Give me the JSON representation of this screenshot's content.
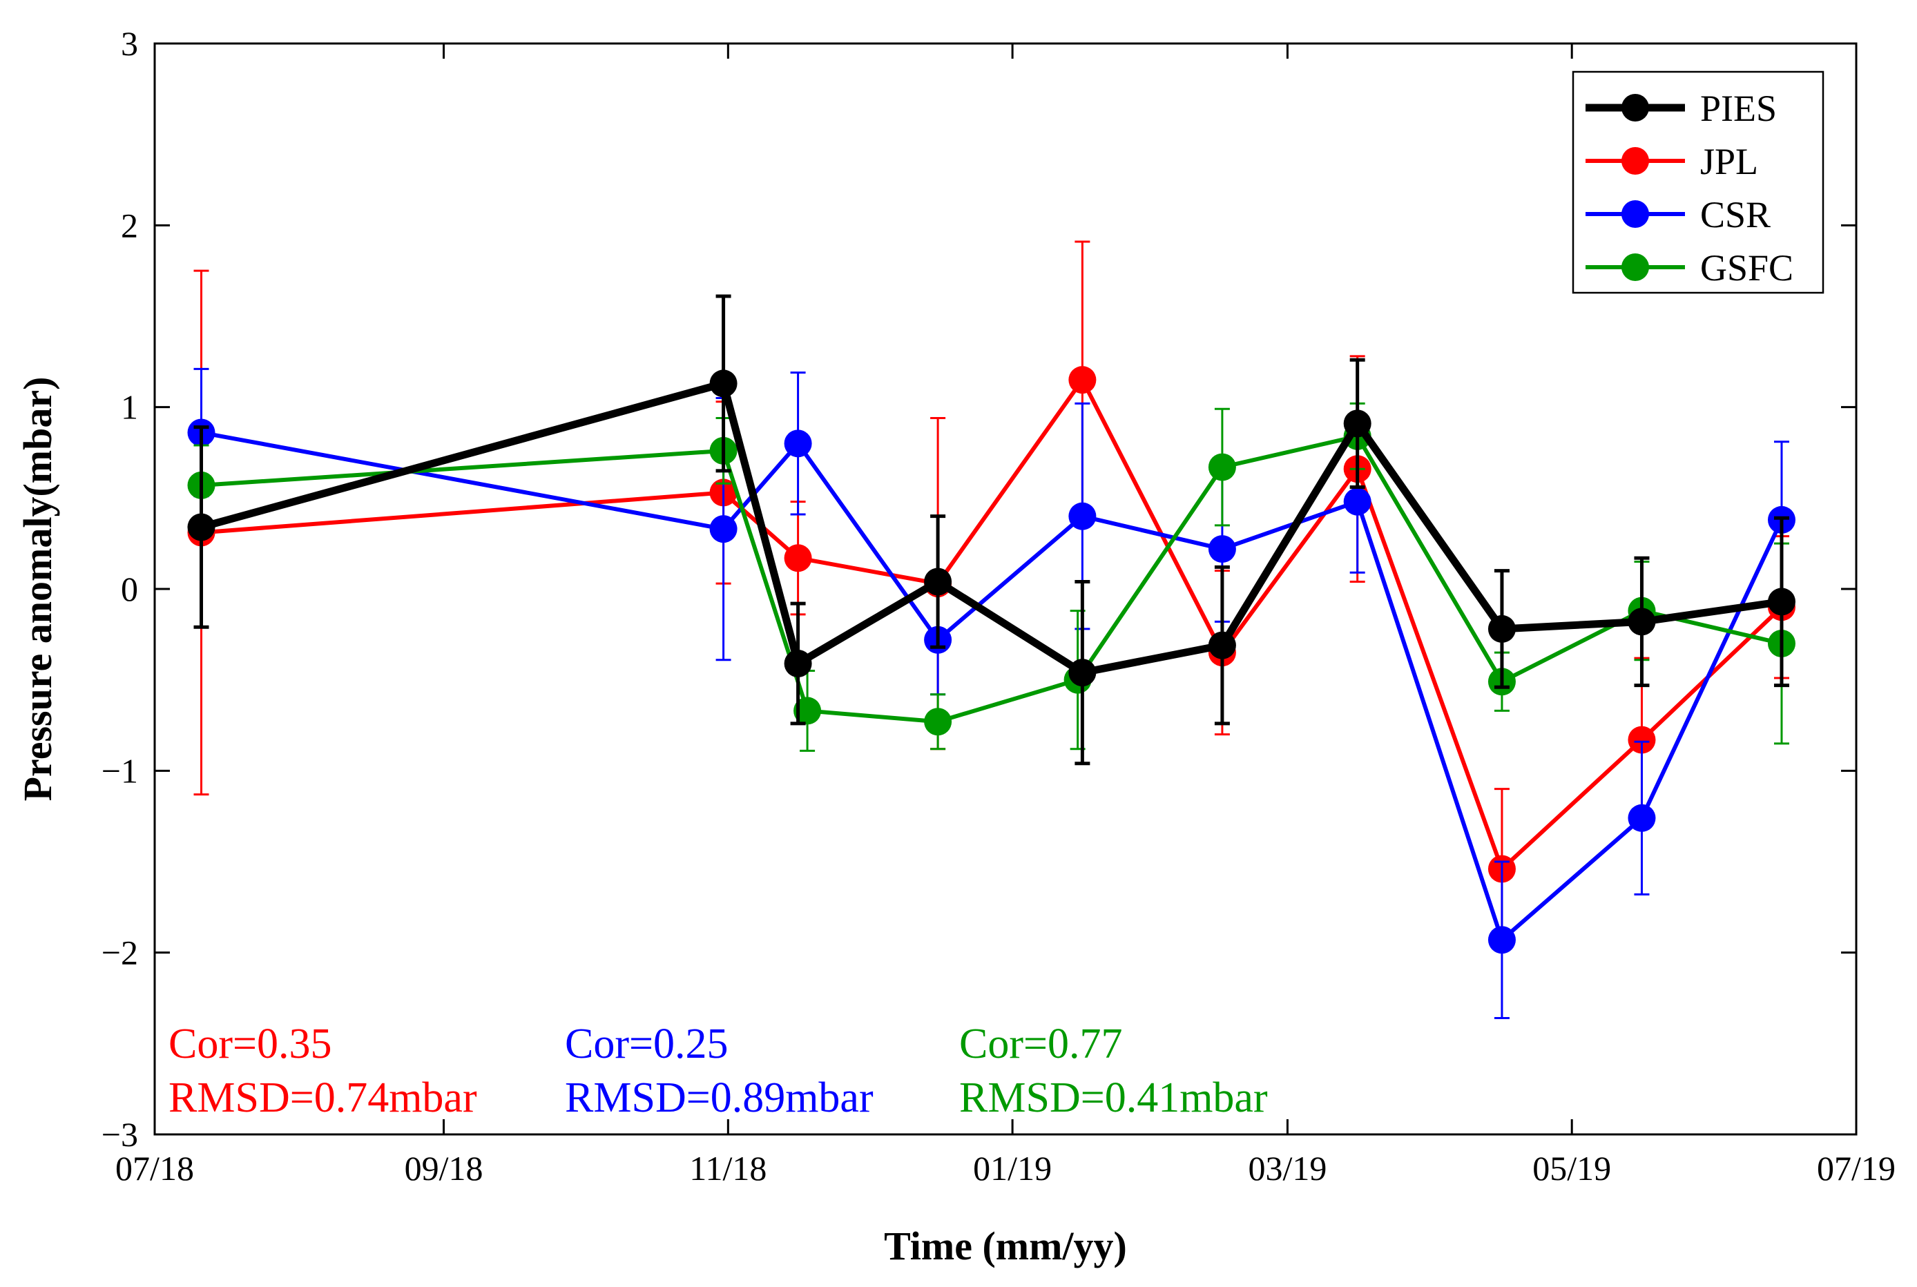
{
  "chart_data": {
    "type": "line",
    "xlabel": "Time (mm/yy)",
    "ylabel": "Pressure anomaly(mbar)",
    "xlim": [
      "2018-07-01",
      "2019-07-01"
    ],
    "ylim": [
      -3,
      3
    ],
    "x_ticks": [
      {
        "date": "2018-07-01",
        "label": "07/18"
      },
      {
        "date": "2018-09-01",
        "label": "09/18"
      },
      {
        "date": "2018-11-01",
        "label": "11/18"
      },
      {
        "date": "2019-01-01",
        "label": "01/19"
      },
      {
        "date": "2019-03-01",
        "label": "03/19"
      },
      {
        "date": "2019-05-01",
        "label": "05/19"
      },
      {
        "date": "2019-07-01",
        "label": "07/19"
      }
    ],
    "y_ticks": [
      {
        "value": 3,
        "label": "3"
      },
      {
        "value": 2,
        "label": "2"
      },
      {
        "value": 1,
        "label": "1"
      },
      {
        "value": 0,
        "label": "0"
      },
      {
        "value": -1,
        "label": "−1"
      },
      {
        "value": -2,
        "label": "−2"
      },
      {
        "value": -3,
        "label": "−3"
      }
    ],
    "legend_position": "top-right",
    "series": [
      {
        "name": "PIES",
        "color": "#000000",
        "line_width": 11,
        "err_width": 5,
        "x": [
          "2018-07-11",
          "2018-10-31",
          "2018-11-16",
          "2018-12-16",
          "2019-01-16",
          "2019-02-15",
          "2019-03-16",
          "2019-04-16",
          "2019-05-16",
          "2019-06-15"
        ],
        "y": [
          0.34,
          1.13,
          -0.41,
          0.04,
          -0.46,
          -0.31,
          0.91,
          -0.22,
          -0.18,
          -0.07
        ],
        "err": [
          0.55,
          0.48,
          0.33,
          0.36,
          0.5,
          0.43,
          0.35,
          0.32,
          0.35,
          0.46
        ]
      },
      {
        "name": "JPL",
        "color": "#ff0000",
        "line_width": 6,
        "err_width": 3,
        "x": [
          "2018-07-11",
          "2018-10-31",
          "2018-11-16",
          "2018-12-16",
          "2019-01-16",
          "2019-02-15",
          "2019-03-16",
          "2019-04-16",
          "2019-05-16",
          "2019-06-15"
        ],
        "y": [
          0.31,
          0.53,
          0.17,
          0.03,
          1.15,
          -0.35,
          0.66,
          -1.54,
          -0.83,
          -0.1
        ],
        "err": [
          1.44,
          0.5,
          0.31,
          0.91,
          0.76,
          0.45,
          0.62,
          0.44,
          0.45,
          0.39
        ]
      },
      {
        "name": "CSR",
        "color": "#0000ff",
        "line_width": 6,
        "err_width": 3,
        "x": [
          "2018-07-11",
          "2018-10-31",
          "2018-11-16",
          "2018-12-16",
          "2019-01-16",
          "2019-02-15",
          "2019-03-16",
          "2019-04-16",
          "2019-05-16",
          "2019-06-15"
        ],
        "y": [
          0.86,
          0.33,
          0.8,
          -0.28,
          0.4,
          0.22,
          0.48,
          -1.93,
          -1.26,
          0.38
        ],
        "err": [
          0.35,
          0.72,
          0.39,
          0.3,
          0.62,
          0.4,
          0.39,
          0.43,
          0.42,
          0.43
        ]
      },
      {
        "name": "GSFC",
        "color": "#009900",
        "line_width": 6,
        "err_width": 3,
        "x": [
          "2018-07-11",
          "2018-10-31",
          "2018-11-18",
          "2018-12-16",
          "2019-01-15",
          "2019-02-15",
          "2019-03-16",
          "2019-04-16",
          "2019-05-16",
          "2019-06-15"
        ],
        "y": [
          0.57,
          0.76,
          -0.67,
          -0.73,
          -0.5,
          0.67,
          0.84,
          -0.51,
          -0.12,
          -0.3
        ],
        "err": [
          0.22,
          0.18,
          0.22,
          0.15,
          0.38,
          0.32,
          0.18,
          0.16,
          0.27,
          0.55
        ]
      }
    ]
  },
  "stats": [
    {
      "cor": "Cor=0.35",
      "rmsd": "RMSD=0.74mbar",
      "color": "#ff0000"
    },
    {
      "cor": "Cor=0.25",
      "rmsd": "RMSD=0.89mbar",
      "color": "#0000ff"
    },
    {
      "cor": "Cor=0.77",
      "rmsd": "RMSD=0.41mbar",
      "color": "#009900"
    }
  ]
}
